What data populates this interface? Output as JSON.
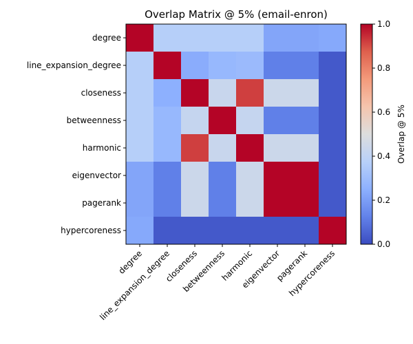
{
  "chart_data": {
    "type": "heatmap",
    "title": "Overlap Matrix @ 5% (email-enron)",
    "labels": [
      "degree",
      "line_expansion_degree",
      "closeness",
      "betweenness",
      "harmonic",
      "eigenvector",
      "pagerank",
      "hypercoreness"
    ],
    "values": [
      [
        1.0,
        0.37,
        0.37,
        0.37,
        0.37,
        0.22,
        0.22,
        0.23
      ],
      [
        0.37,
        1.0,
        0.24,
        0.28,
        0.29,
        0.12,
        0.12,
        0.03
      ],
      [
        0.37,
        0.25,
        1.0,
        0.43,
        0.92,
        0.44,
        0.44,
        0.03
      ],
      [
        0.37,
        0.28,
        0.42,
        1.0,
        0.42,
        0.12,
        0.12,
        0.03
      ],
      [
        0.37,
        0.28,
        0.92,
        0.43,
        1.0,
        0.44,
        0.44,
        0.03
      ],
      [
        0.22,
        0.12,
        0.44,
        0.12,
        0.44,
        1.0,
        1.0,
        0.03
      ],
      [
        0.22,
        0.12,
        0.44,
        0.12,
        0.44,
        1.0,
        1.0,
        0.03
      ],
      [
        0.23,
        0.03,
        0.03,
        0.03,
        0.03,
        0.03,
        0.03,
        1.0
      ]
    ],
    "colorbar": {
      "label": "Overlap @ 5%",
      "colormap": "coolwarm",
      "range": [
        0.0,
        1.0
      ],
      "ticks": [
        "0.0",
        "0.2",
        "0.4",
        "0.6",
        "0.8",
        "1.0"
      ]
    }
  }
}
